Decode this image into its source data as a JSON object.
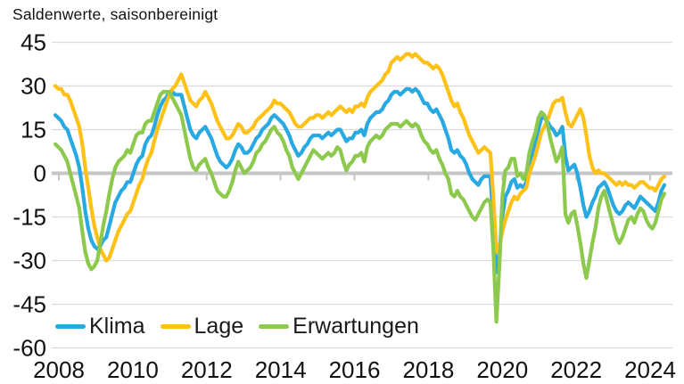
{
  "title": "Saldenwerte, saisonbereinigt",
  "chart_data": {
    "type": "line",
    "title": "Saldenwerte, saisonbereinigt",
    "x_start": "2008-01",
    "frequency": "monthly",
    "xticklabels": [
      "2008",
      "2010",
      "2012",
      "2014",
      "2016",
      "2018",
      "2020",
      "2022",
      "2024"
    ],
    "yticks": [
      45,
      30,
      15,
      0,
      -15,
      -30,
      -45,
      -60
    ],
    "ylim": [
      -60,
      45
    ],
    "grid": "horizontal",
    "legend_position": "inside-bottom-left",
    "colors": {
      "gridline": "#dadada",
      "zeroline": "#c6c6c6",
      "tick": "#c6c6c6",
      "text": "#111111"
    },
    "series": [
      {
        "name": "Klima",
        "color": "#29a9e1",
        "values": [
          20,
          19,
          18,
          16,
          15,
          12,
          9,
          6,
          2,
          -5,
          -13,
          -19,
          -23,
          -25,
          -26,
          -25,
          -23,
          -22,
          -18,
          -14,
          -10,
          -8,
          -6,
          -5,
          -3,
          -3,
          0,
          3,
          5,
          6,
          10,
          12,
          13,
          16,
          20,
          23,
          25,
          26,
          28,
          28,
          27,
          27,
          27,
          23,
          19,
          15,
          13,
          12,
          14,
          15,
          16,
          14,
          12,
          9,
          6,
          4,
          3,
          2,
          3,
          5,
          8,
          10,
          9,
          7,
          7,
          8,
          10,
          12,
          13,
          15,
          16,
          17,
          19,
          20,
          19,
          18,
          17,
          15,
          13,
          10,
          8,
          6,
          7,
          9,
          10,
          12,
          13,
          13,
          13,
          12,
          13,
          14,
          13,
          14,
          15,
          15,
          13,
          11,
          12,
          12,
          14,
          14,
          15,
          13,
          17,
          19,
          20,
          21,
          21,
          22,
          24,
          25,
          27,
          28,
          28,
          27,
          28,
          29,
          29,
          28,
          29,
          28,
          26,
          24,
          24,
          22,
          21,
          22,
          20,
          18,
          15,
          12,
          8,
          7,
          8,
          6,
          5,
          3,
          0,
          -2,
          -3,
          -4,
          -2,
          -1,
          -1,
          -1,
          -17,
          -34,
          -28,
          -15,
          -8,
          -6,
          -3,
          -2,
          -5,
          -4,
          -5,
          -3,
          3,
          7,
          10,
          15,
          19,
          19,
          18,
          16,
          15,
          13,
          14,
          16,
          6,
          1,
          2,
          3,
          0,
          -5,
          -11,
          -15,
          -13,
          -10,
          -8,
          -5,
          -4,
          -3,
          -5,
          -8,
          -11,
          -13,
          -14,
          -13,
          -11,
          -10,
          -11,
          -12,
          -10,
          -8,
          -9,
          -10,
          -11,
          -12,
          -13,
          -10,
          -6,
          -4
        ]
      },
      {
        "name": "Lage",
        "color": "#fdc117",
        "values": [
          30,
          29,
          29,
          27,
          27,
          25,
          22,
          19,
          16,
          10,
          2,
          -5,
          -12,
          -18,
          -22,
          -26,
          -28,
          -30,
          -29,
          -26,
          -23,
          -20,
          -18,
          -16,
          -14,
          -13,
          -10,
          -7,
          -4,
          -2,
          2,
          5,
          7,
          11,
          15,
          18,
          21,
          24,
          27,
          29,
          30,
          32,
          34,
          31,
          28,
          25,
          24,
          23,
          25,
          26,
          28,
          26,
          24,
          21,
          18,
          16,
          14,
          12,
          12,
          13,
          15,
          17,
          16,
          14,
          14,
          15,
          16,
          18,
          19,
          20,
          21,
          22,
          23,
          25,
          24,
          24,
          23,
          22,
          21,
          19,
          17,
          16,
          16,
          17,
          18,
          19,
          19,
          20,
          20,
          19,
          20,
          21,
          20,
          21,
          22,
          23,
          22,
          21,
          22,
          21,
          23,
          23,
          24,
          23,
          26,
          28,
          29,
          30,
          31,
          32,
          34,
          35,
          38,
          39,
          40,
          39,
          40,
          41,
          41,
          40,
          41,
          40,
          39,
          38,
          38,
          37,
          36,
          37,
          36,
          34,
          31,
          28,
          25,
          23,
          24,
          21,
          19,
          16,
          13,
          11,
          9,
          7,
          8,
          9,
          8,
          7,
          -8,
          -27,
          -25,
          -20,
          -16,
          -13,
          -10,
          -8,
          -9,
          -7,
          -6,
          -5,
          0,
          3,
          6,
          10,
          14,
          16,
          18,
          21,
          24,
          25,
          25,
          26,
          21,
          17,
          16,
          18,
          20,
          22,
          19,
          13,
          6,
          2,
          0,
          1,
          0,
          0,
          -1,
          -2,
          -3,
          -4,
          -3,
          -4,
          -3,
          -4,
          -4,
          -5,
          -4,
          -3,
          -3,
          -4,
          -5,
          -5,
          -6,
          -4,
          -2,
          -1
        ]
      },
      {
        "name": "Erwartungen",
        "color": "#8cc94c",
        "values": [
          10,
          9,
          8,
          6,
          4,
          0,
          -4,
          -8,
          -12,
          -20,
          -27,
          -31,
          -33,
          -32,
          -30,
          -24,
          -18,
          -13,
          -7,
          -2,
          2,
          4,
          5,
          6,
          8,
          7,
          10,
          13,
          14,
          14,
          17,
          18,
          18,
          21,
          24,
          27,
          28,
          28,
          28,
          26,
          24,
          22,
          20,
          15,
          10,
          5,
          2,
          1,
          3,
          4,
          5,
          2,
          0,
          -3,
          -6,
          -7,
          -8,
          -8,
          -6,
          -3,
          1,
          4,
          2,
          0,
          1,
          2,
          4,
          7,
          8,
          10,
          11,
          13,
          15,
          16,
          14,
          13,
          11,
          8,
          6,
          2,
          0,
          -2,
          0,
          2,
          4,
          6,
          8,
          7,
          6,
          5,
          6,
          7,
          6,
          7,
          9,
          8,
          4,
          1,
          3,
          4,
          6,
          6,
          7,
          4,
          9,
          11,
          12,
          13,
          12,
          13,
          15,
          16,
          17,
          17,
          17,
          16,
          17,
          18,
          17,
          16,
          17,
          16,
          13,
          11,
          10,
          8,
          7,
          8,
          5,
          3,
          0,
          -2,
          -7,
          -8,
          -6,
          -8,
          -9,
          -11,
          -13,
          -15,
          -16,
          -14,
          -12,
          -10,
          -9,
          -10,
          -26,
          -51,
          -32,
          -8,
          1,
          2,
          5,
          5,
          -1,
          0,
          -2,
          0,
          7,
          11,
          14,
          19,
          21,
          20,
          17,
          12,
          8,
          4,
          6,
          9,
          -14,
          -17,
          -14,
          -13,
          -18,
          -24,
          -31,
          -36,
          -30,
          -24,
          -19,
          -12,
          -8,
          -6,
          -10,
          -14,
          -18,
          -22,
          -24,
          -22,
          -19,
          -16,
          -15,
          -17,
          -14,
          -12,
          -13,
          -16,
          -18,
          -19,
          -17,
          -13,
          -9,
          -7
        ]
      }
    ]
  }
}
